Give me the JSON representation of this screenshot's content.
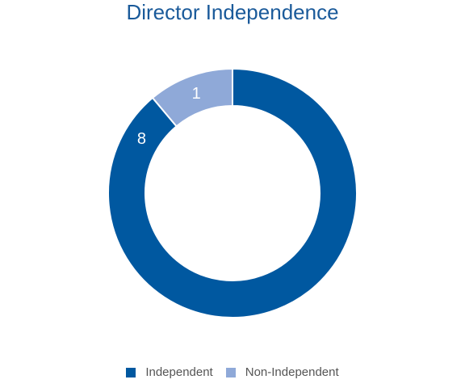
{
  "chart_data": {
    "type": "pie",
    "title": "Director Independence",
    "categories": [
      "Independent",
      "Non-Independent"
    ],
    "values": [
      8,
      1
    ],
    "data_labels": [
      "8",
      "1"
    ],
    "colors": [
      "#0058a0",
      "#8fa9d8"
    ],
    "donut": true,
    "legend_position": "bottom"
  }
}
